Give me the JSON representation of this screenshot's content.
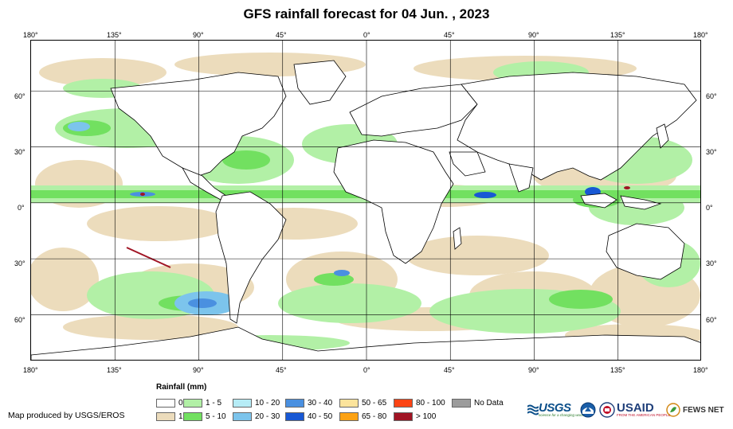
{
  "title": "GFS rainfall forecast for 04 Jun. , 2023",
  "lon_ticks": [
    "180°",
    "135°",
    "90°",
    "45°",
    "0°",
    "45°",
    "90°",
    "135°",
    "180°"
  ],
  "lat_ticks": [
    "60°",
    "30°",
    "0°",
    "30°",
    "60°"
  ],
  "legend": {
    "title": "Rainfall (mm)",
    "items": [
      {
        "label": "0",
        "color": "#ffffff"
      },
      {
        "label": "1",
        "color": "#ecdcbc"
      },
      {
        "label": "1 - 5",
        "color": "#b2f0a6"
      },
      {
        "label": "5 - 10",
        "color": "#72e060"
      },
      {
        "label": "10 - 20",
        "color": "#b6ecf6"
      },
      {
        "label": "20 - 30",
        "color": "#7cc4ec"
      },
      {
        "label": "30 - 40",
        "color": "#4a90e0"
      },
      {
        "label": "40 - 50",
        "color": "#1858d4"
      },
      {
        "label": "50 - 65",
        "color": "#fce49c"
      },
      {
        "label": "65 - 80",
        "color": "#fca214"
      },
      {
        "label": "80 - 100",
        "color": "#fc4414"
      },
      {
        "label": "> 100",
        "color": "#a01424"
      },
      {
        "label": "No Data",
        "color": "#9c9c9c"
      }
    ]
  },
  "credit": "Map produced by USGS/EROS",
  "logos": {
    "usgs": "USGS",
    "usgs_tagline": "science for a changing world",
    "usaid": "USAID",
    "usaid_tagline": "FROM THE AMERICAN PEOPLE",
    "fews": "FEWS NET"
  },
  "map": {
    "lon_range": [
      -180,
      180
    ],
    "lat_range": [
      -85,
      87
    ],
    "grid_lons": [
      -135,
      -90,
      -45,
      0,
      45,
      90,
      135
    ],
    "grid_lats": [
      60,
      30,
      0,
      -30,
      -60
    ]
  }
}
